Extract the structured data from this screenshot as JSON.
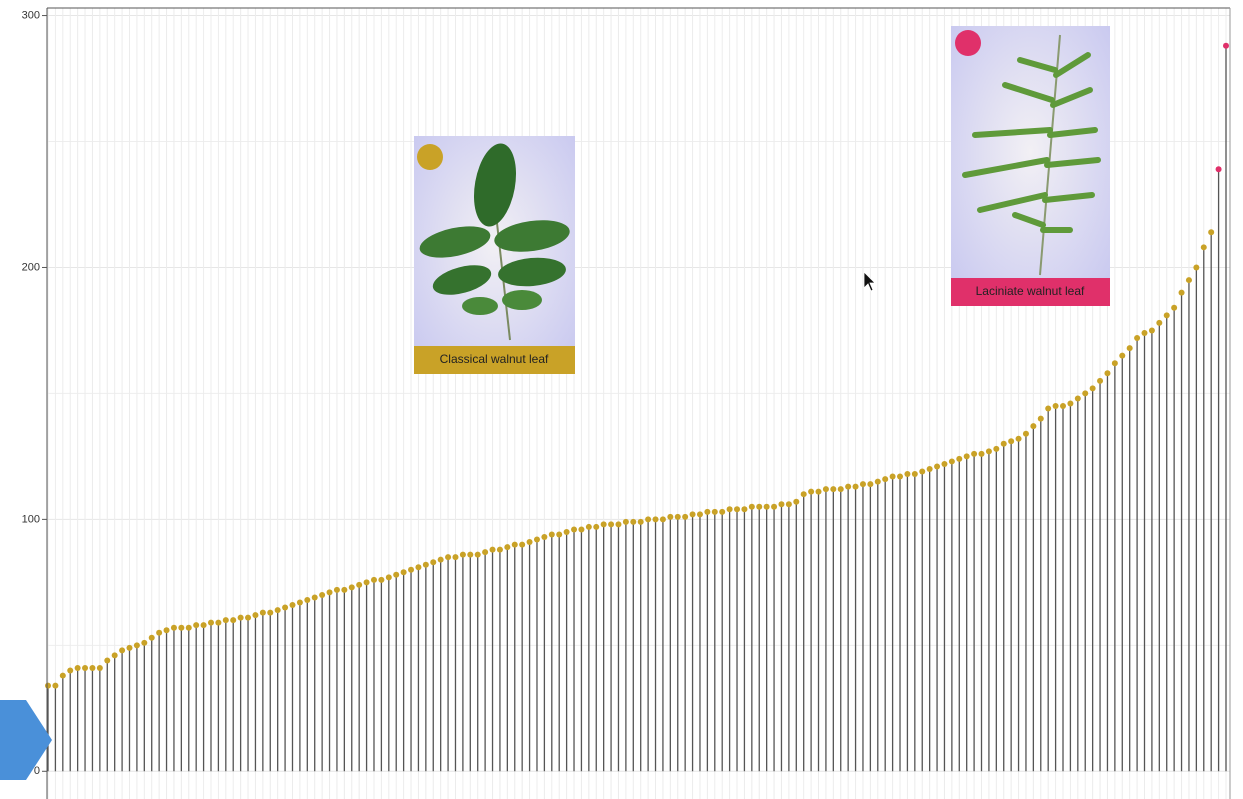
{
  "chart_data": {
    "type": "lollipop",
    "series": [
      {
        "color": "#c9a227",
        "values": [
          34,
          34,
          38,
          40,
          41,
          41,
          41,
          41,
          44,
          46,
          48,
          49,
          50,
          51,
          53,
          55,
          56,
          57,
          57,
          57,
          58,
          58,
          59,
          59,
          60,
          60,
          61,
          61,
          62,
          63,
          63,
          64,
          65,
          66,
          67,
          68,
          69,
          70,
          71,
          72,
          72,
          73,
          74,
          75,
          76,
          76,
          77,
          78,
          79,
          80,
          81,
          82,
          83,
          84,
          85,
          85,
          86,
          86,
          86,
          87,
          88,
          88,
          89,
          90,
          90,
          91,
          92,
          93,
          94,
          94,
          95,
          96,
          96,
          97,
          97,
          98,
          98,
          98,
          99,
          99,
          99,
          100,
          100,
          100,
          101,
          101,
          101,
          102,
          102,
          103,
          103,
          103,
          104,
          104,
          104,
          105,
          105,
          105,
          105,
          106,
          106,
          107,
          110,
          111,
          111,
          112,
          112,
          112,
          113,
          113,
          114,
          114,
          115,
          116,
          117,
          117,
          118,
          118,
          119,
          120,
          121,
          122,
          123,
          124,
          125,
          126,
          126,
          127,
          128,
          130,
          131,
          132,
          134,
          137,
          140,
          144,
          145,
          145,
          146,
          148,
          150,
          152,
          155,
          158,
          162,
          165,
          168,
          172,
          174,
          175,
          178,
          181,
          184,
          190,
          195,
          200,
          208,
          214,
          null,
          null
        ]
      },
      {
        "color": "#e0306a",
        "values": [
          null,
          null,
          null,
          null,
          null,
          null,
          null,
          null,
          null,
          null,
          null,
          null,
          null,
          null,
          null,
          null,
          null,
          null,
          null,
          null,
          null,
          null,
          null,
          null,
          null,
          null,
          null,
          null,
          null,
          null,
          null,
          null,
          null,
          null,
          null,
          null,
          null,
          null,
          null,
          null,
          null,
          null,
          null,
          null,
          null,
          null,
          null,
          null,
          null,
          null,
          null,
          null,
          null,
          null,
          null,
          null,
          null,
          null,
          null,
          null,
          null,
          null,
          null,
          null,
          null,
          null,
          null,
          null,
          null,
          null,
          null,
          null,
          null,
          null,
          null,
          null,
          null,
          null,
          null,
          null,
          null,
          null,
          null,
          null,
          null,
          null,
          null,
          null,
          null,
          null,
          null,
          null,
          null,
          null,
          null,
          null,
          null,
          null,
          null,
          null,
          null,
          null,
          null,
          null,
          null,
          null,
          null,
          null,
          null,
          null,
          null,
          null,
          null,
          null,
          null,
          null,
          null,
          null,
          null,
          null,
          null,
          null,
          null,
          null,
          null,
          null,
          null,
          null,
          null,
          null,
          null,
          null,
          null,
          null,
          null,
          null,
          null,
          null,
          null,
          null,
          null,
          null,
          null,
          null,
          null,
          null,
          null,
          null,
          null,
          null,
          null,
          null,
          null,
          null,
          null,
          null,
          null,
          null,
          239,
          288
        ]
      }
    ],
    "ylim": [
      -11,
      303
    ],
    "yticks": [
      0,
      100,
      200,
      300
    ],
    "minor_yticks": [
      50,
      150,
      250
    ],
    "grid": true,
    "annotations": [
      {
        "text": "Classical walnut leaf",
        "color": "#c9a227"
      },
      {
        "text": "Laciniate walnut leaf",
        "color": "#e0306a"
      }
    ]
  }
}
